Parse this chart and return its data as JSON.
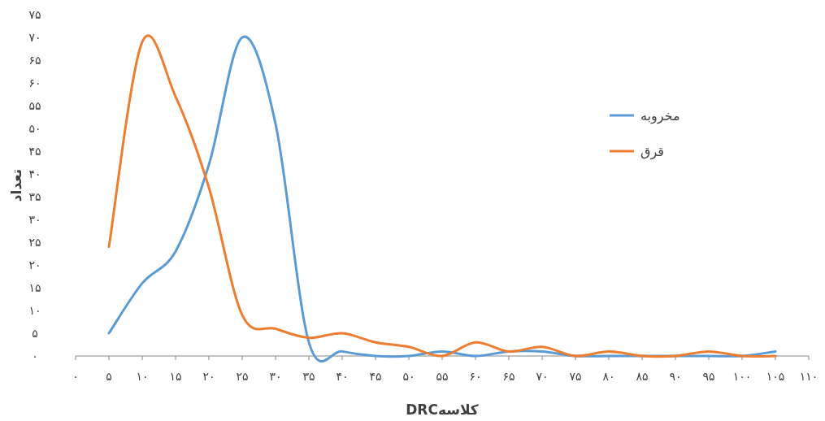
{
  "chart_data": {
    "type": "line",
    "xlabel": "کلاسهDRC",
    "ylabel": "تعداد",
    "x": [
      5,
      10,
      15,
      20,
      25,
      30,
      35,
      40,
      45,
      50,
      55,
      60,
      65,
      70,
      75,
      80,
      85,
      90,
      95,
      100,
      105
    ],
    "series": [
      {
        "name": "مخروبه",
        "color": "#5b9bd5",
        "values": [
          5,
          16,
          23,
          42,
          70,
          51,
          3,
          1,
          0,
          0,
          1,
          0,
          1,
          1,
          0,
          0,
          0,
          0,
          0,
          0,
          1
        ]
      },
      {
        "name": "قرق",
        "color": "#ed7d31",
        "values": [
          24,
          69,
          57,
          37,
          9,
          6,
          4,
          5,
          3,
          2,
          0,
          3,
          1,
          2,
          0,
          1,
          0,
          0,
          1,
          0,
          0
        ]
      }
    ],
    "xlim": [
      0,
      110
    ],
    "xticks": [
      {
        "value": 0,
        "label": "۰"
      },
      {
        "value": 5,
        "label": "۵"
      },
      {
        "value": 10,
        "label": "۱۰"
      },
      {
        "value": 15,
        "label": "۱۵"
      },
      {
        "value": 20,
        "label": "۲۰"
      },
      {
        "value": 25,
        "label": "۲۵"
      },
      {
        "value": 30,
        "label": "۳۰"
      },
      {
        "value": 35,
        "label": "۳۵"
      },
      {
        "value": 40,
        "label": "۴۰"
      },
      {
        "value": 45,
        "label": "۴۵"
      },
      {
        "value": 50,
        "label": "۵۰"
      },
      {
        "value": 55,
        "label": "۵۵"
      },
      {
        "value": 60,
        "label": "۶۰"
      },
      {
        "value": 65,
        "label": "۶۵"
      },
      {
        "value": 70,
        "label": "۷۰"
      },
      {
        "value": 75,
        "label": "۷۵"
      },
      {
        "value": 80,
        "label": "۸۰"
      },
      {
        "value": 85,
        "label": "۸۵"
      },
      {
        "value": 90,
        "label": "۹۰"
      },
      {
        "value": 95,
        "label": "۹۵"
      },
      {
        "value": 100,
        "label": "۱۰۰"
      },
      {
        "value": 105,
        "label": "۱۰۵"
      },
      {
        "value": 110,
        "label": "۱۱۰"
      }
    ],
    "ylim": [
      0,
      75
    ],
    "yticks": [
      {
        "value": 0,
        "label": "۰"
      },
      {
        "value": 5,
        "label": "۵"
      },
      {
        "value": 10,
        "label": "۱۰"
      },
      {
        "value": 15,
        "label": "۱۵"
      },
      {
        "value": 20,
        "label": "۲۰"
      },
      {
        "value": 25,
        "label": "۲۵"
      },
      {
        "value": 30,
        "label": "۳۰"
      },
      {
        "value": 35,
        "label": "۳۵"
      },
      {
        "value": 40,
        "label": "۴۰"
      },
      {
        "value": 45,
        "label": "۴۵"
      },
      {
        "value": 50,
        "label": "۵۰"
      },
      {
        "value": 55,
        "label": "۵۵"
      },
      {
        "value": 60,
        "label": "۶۰"
      },
      {
        "value": 65,
        "label": "۶۵"
      },
      {
        "value": 70,
        "label": "۷۰"
      },
      {
        "value": 75,
        "label": "۷۵"
      }
    ],
    "legend": "right",
    "marker": "none",
    "line_style": "solid"
  }
}
